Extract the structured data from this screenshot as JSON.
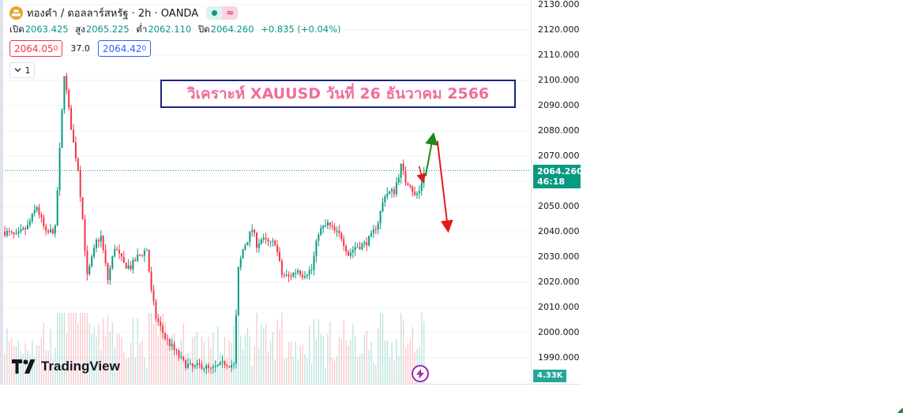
{
  "header": {
    "symbol_title": "ทองคำ / ดอลลาร์สหรัฐ · 2h · OANDA",
    "wave_glyph": "≈"
  },
  "ohlc": {
    "open_label": "เปิด",
    "open_value": "2063.425",
    "high_label": "สูง",
    "high_value": "2065.225",
    "low_label": "ต่ำ",
    "low_value": "2062.110",
    "close_label": "ปิด",
    "close_value": "2064.260",
    "change": "+0.835 (+0.04%)"
  },
  "quote": {
    "bid_main": "2064.05",
    "bid_sup": "0",
    "spread": "37.0",
    "ask_main": "2064.42",
    "ask_sup": "0"
  },
  "interval_button": "1",
  "annotation": "วิเคราะห์ XAUUSD วันที่ 26 ธันวาคม 2566",
  "brand": "TradingView",
  "badges": {
    "price": "2064.260",
    "countdown": "46:18",
    "volume": "4.33K"
  },
  "colors": {
    "up": "#089981",
    "down": "#f23645",
    "annotation_text": "#f06d9a",
    "annotation_border": "#1a237e",
    "arrow_up": "#1b8a1b",
    "arrow_down": "#e01b1b"
  },
  "chart_data": {
    "type": "candlestick",
    "ylim": [
      1985,
      2132
    ],
    "y_ticks": [
      "2130.000",
      "2120.000",
      "2110.000",
      "2100.000",
      "2090.000",
      "2080.000",
      "2070.000",
      "2060.000",
      "2050.000",
      "2040.000",
      "2030.000",
      "2020.000",
      "2010.000",
      "2000.000",
      "1990.000"
    ],
    "y_tick_values": [
      2130,
      2120,
      2110,
      2100,
      2090,
      2080,
      2070,
      2060,
      2050,
      2040,
      2030,
      2020,
      2010,
      2000,
      1990
    ],
    "last_price": 2064.26,
    "price_path": [
      [
        0,
        2040
      ],
      [
        5,
        2038
      ],
      [
        10,
        2042
      ],
      [
        14,
        2050
      ],
      [
        18,
        2039
      ],
      [
        22,
        2041
      ],
      [
        24,
        2072
      ],
      [
        26,
        2103
      ],
      [
        28,
        2088
      ],
      [
        30,
        2075
      ],
      [
        32,
        2065
      ],
      [
        34,
        2045
      ],
      [
        36,
        2022
      ],
      [
        40,
        2036
      ],
      [
        42,
        2038
      ],
      [
        45,
        2021
      ],
      [
        48,
        2034
      ],
      [
        52,
        2027
      ],
      [
        55,
        2026
      ],
      [
        58,
        2030
      ],
      [
        62,
        2033
      ],
      [
        64,
        2016
      ],
      [
        66,
        2006
      ],
      [
        70,
        1998
      ],
      [
        74,
        1993
      ],
      [
        78,
        1988
      ],
      [
        82,
        1986
      ],
      [
        86,
        1987
      ],
      [
        90,
        1985
      ],
      [
        96,
        1988
      ],
      [
        100,
        1987
      ],
      [
        102,
        2025
      ],
      [
        104,
        2033
      ],
      [
        108,
        2041
      ],
      [
        110,
        2035
      ],
      [
        112,
        2037
      ],
      [
        116,
        2035
      ],
      [
        118,
        2036
      ],
      [
        121,
        2023
      ],
      [
        124,
        2022
      ],
      [
        128,
        2025
      ],
      [
        130,
        2023
      ],
      [
        134,
        2025
      ],
      [
        137,
        2040
      ],
      [
        141,
        2043
      ],
      [
        144,
        2040
      ],
      [
        147,
        2038
      ],
      [
        150,
        2031
      ],
      [
        153,
        2034
      ],
      [
        157,
        2035
      ],
      [
        160,
        2038
      ],
      [
        163,
        2044
      ],
      [
        166,
        2055
      ],
      [
        170,
        2056
      ],
      [
        173,
        2066
      ],
      [
        175,
        2060
      ],
      [
        177,
        2059
      ],
      [
        179,
        2054
      ],
      [
        181,
        2056
      ],
      [
        183,
        2064
      ]
    ],
    "projection": {
      "up": {
        "from": [
          2062,
          "t1"
        ],
        "to": [
          2077,
          "t2"
        ]
      },
      "down": {
        "from": [
          2076,
          "t2"
        ],
        "to": [
          2042,
          "t3"
        ]
      }
    }
  }
}
